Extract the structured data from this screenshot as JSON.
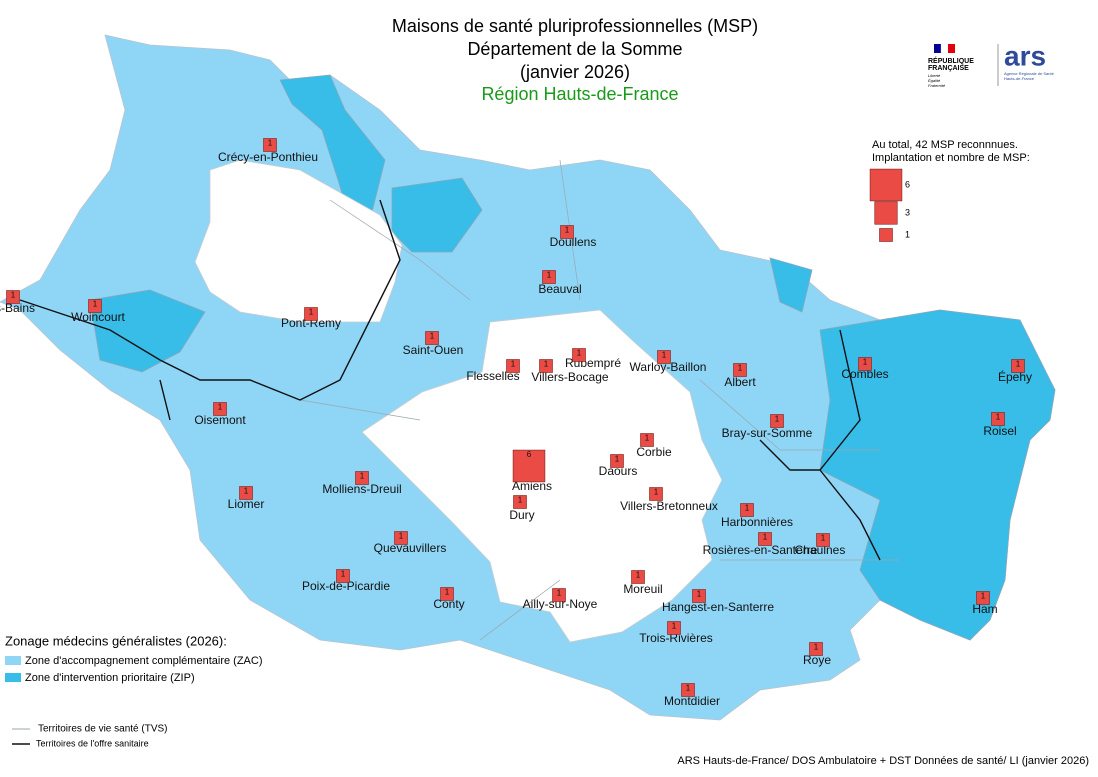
{
  "header": {
    "title": [
      "Maisons de santé pluriprofessionnelles (MSP)",
      "Département de la Somme",
      "(janvier 2026)",
      "Région Hauts-de-France"
    ]
  },
  "logos": {
    "republique": [
      "RÉPUBLIQUE",
      "FRANÇAISE"
    ],
    "motto": [
      "Liberté",
      "Égalité",
      "Fraternité"
    ],
    "ars": "ars",
    "ars_caption": [
      "Agence Régionale de Santé",
      "Hauts-de-France"
    ]
  },
  "msp_legend": {
    "text": [
      "Au total, 42 MSP reconnnues.",
      "Implantation et nombre de MSP:"
    ],
    "sizes": [
      6,
      3,
      1
    ]
  },
  "zoning_legend": {
    "title": "Zonage médecins généralistes (2026):",
    "items": [
      "Zone d'accompagnement complémentaire (ZAC)",
      "Zone d'intervention prioritaire (ZIP)"
    ]
  },
  "boundary_legend": {
    "items": [
      "Territoires de vie santé (TVS)",
      "Territoires de l'offre sanitaire"
    ]
  },
  "places": [
    {
      "name": "Crécy-en-Ponthieu",
      "count": 1
    },
    {
      "name": "Doullens",
      "count": 1
    },
    {
      "name": "Beauval",
      "count": 1
    },
    {
      "name": "Mers-les-Bains",
      "count": 1
    },
    {
      "name": "Woincourt",
      "count": 1
    },
    {
      "name": "Pont-Remy",
      "count": 1
    },
    {
      "name": "Saint-Ouen",
      "count": 1
    },
    {
      "name": "Flesselles",
      "count": 1
    },
    {
      "name": "Villers-Bocage",
      "count": 1
    },
    {
      "name": "Rubempré",
      "count": 1
    },
    {
      "name": "Warloy-Baillon",
      "count": 1
    },
    {
      "name": "Albert",
      "count": 1
    },
    {
      "name": "Combles",
      "count": 1
    },
    {
      "name": "Épehy",
      "count": 1
    },
    {
      "name": "Oisemont",
      "count": 1
    },
    {
      "name": "Roisel",
      "count": 1
    },
    {
      "name": "Bray-sur-Somme",
      "count": 1
    },
    {
      "name": "Corbie",
      "count": 1
    },
    {
      "name": "Amiens",
      "count": 6
    },
    {
      "name": "Daours",
      "count": 1
    },
    {
      "name": "Molliens-Dreuil",
      "count": 1
    },
    {
      "name": "Liomer",
      "count": 1
    },
    {
      "name": "Dury",
      "count": 1
    },
    {
      "name": "Villers-Bretonneux",
      "count": 1
    },
    {
      "name": "Harbonnières",
      "count": 1
    },
    {
      "name": "Quevauvillers",
      "count": 1
    },
    {
      "name": "Rosières-en-Santerre",
      "count": 1
    },
    {
      "name": "Chaulnes",
      "count": 1
    },
    {
      "name": "Poix-de-Picardie",
      "count": 1
    },
    {
      "name": "Moreuil",
      "count": 1
    },
    {
      "name": "Conty",
      "count": 1
    },
    {
      "name": "Ailly-sur-Noye",
      "count": 1
    },
    {
      "name": "Hangest-en-Santerre",
      "count": 1
    },
    {
      "name": "Ham",
      "count": 1
    },
    {
      "name": "Trois-Rivières",
      "count": 1
    },
    {
      "name": "Roye",
      "count": 1
    },
    {
      "name": "Montdidier",
      "count": 1
    }
  ],
  "source": "ARS Hauts-de-France/ DOS Ambulatoire + DST Données de santé/ LI (janvier 2026)"
}
